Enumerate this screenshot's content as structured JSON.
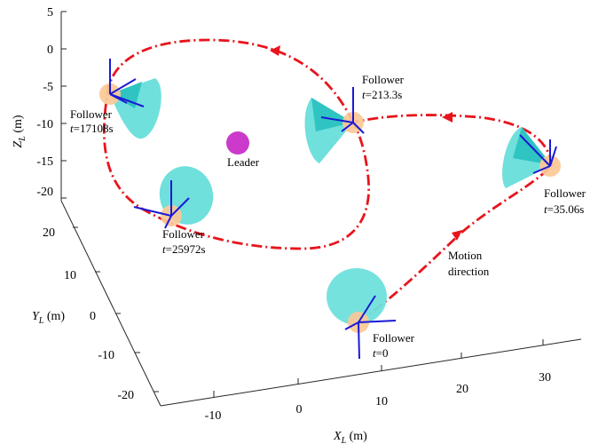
{
  "chart_data": {
    "type": "scatter",
    "projection": "3d",
    "grid": false,
    "axes": {
      "x": {
        "label_main": "X",
        "label_sub": "L",
        "label_unit": " (m)",
        "ticks": [
          -10,
          0,
          10,
          20,
          30
        ],
        "tick_labels": [
          "-10",
          "0",
          "10",
          "20",
          "30"
        ],
        "range": [
          -15,
          35
        ]
      },
      "y": {
        "label_main": "Y",
        "label_sub": "L",
        "label_unit": " (m)",
        "ticks": [
          -20,
          -10,
          0,
          10,
          20
        ],
        "tick_labels": [
          "-20",
          "-10",
          "0",
          "10",
          "20"
        ],
        "range": [
          -25,
          25
        ]
      },
      "z": {
        "label_main": "Z",
        "label_sub": "L",
        "label_unit": " (m)",
        "ticks": [
          5,
          0,
          -5,
          -10,
          -15,
          -20
        ],
        "tick_labels": [
          "5",
          "0",
          "-5",
          "-10",
          "-15",
          "-20"
        ],
        "range": [
          -22,
          5
        ]
      }
    },
    "colors": {
      "trajectory": "#e8141c",
      "leader": "#cc3acc",
      "follower": "#fbc896",
      "cone": "#6fe0dc",
      "cone_dark": "#2fc4c2",
      "body_axes": "#1a1ad6"
    },
    "leader": {
      "label": "Leader",
      "x": -5,
      "y": 5,
      "z": -12
    },
    "followers": [
      {
        "label": "Follower",
        "time_prefix": "t",
        "time_value": "=0",
        "x": 8,
        "y": -12,
        "z": -20
      },
      {
        "label": "Follower",
        "time_prefix": "t",
        "time_value": "=35.06s",
        "x": 30,
        "y": -5,
        "z": -10
      },
      {
        "label": "Follower",
        "time_prefix": "t",
        "time_value": "=213.3s",
        "x": 10,
        "y": 10,
        "z": -8
      },
      {
        "label": "Follower",
        "time_prefix": "t",
        "time_value": "=17108s",
        "x": -14,
        "y": 10,
        "z": -4
      },
      {
        "label": "Follower",
        "time_prefix": "t",
        "time_value": "=25972s",
        "x": -10,
        "y": 0,
        "z": -15
      }
    ],
    "annotations": [
      {
        "text_line1": "Motion",
        "text_line2": "direction"
      }
    ]
  }
}
